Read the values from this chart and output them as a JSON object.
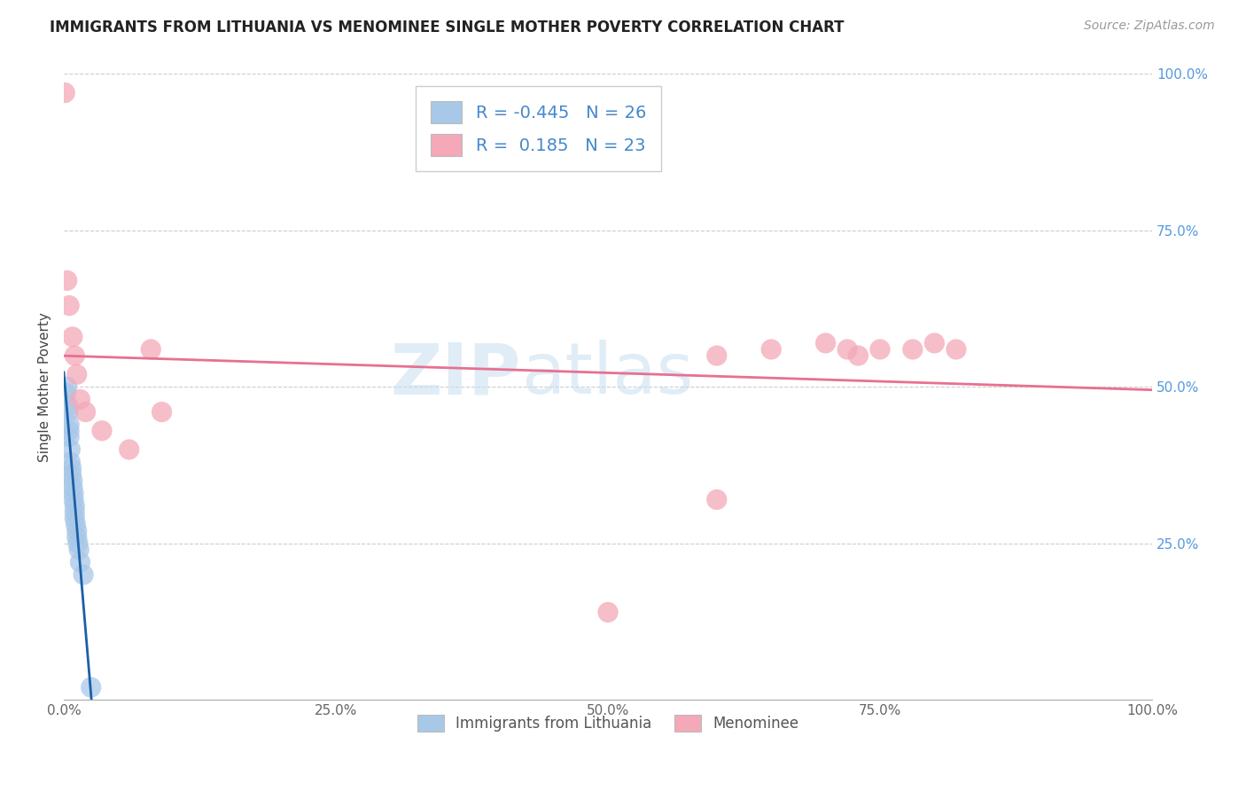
{
  "title": "IMMIGRANTS FROM LITHUANIA VS MENOMINEE SINGLE MOTHER POVERTY CORRELATION CHART",
  "source": "Source: ZipAtlas.com",
  "ylabel": "Single Mother Poverty",
  "xlim": [
    0,
    1.0
  ],
  "ylim": [
    0,
    1.0
  ],
  "xtick_labels": [
    "0.0%",
    "25.0%",
    "50.0%",
    "75.0%",
    "100.0%"
  ],
  "xtick_vals": [
    0,
    0.25,
    0.5,
    0.75,
    1.0
  ],
  "ytick_labels_right": [
    "100.0%",
    "75.0%",
    "50.0%",
    "25.0%"
  ],
  "ytick_vals_right": [
    1.0,
    0.75,
    0.5,
    0.25
  ],
  "blue_r": "-0.445",
  "blue_n": "26",
  "pink_r": "0.185",
  "pink_n": "23",
  "blue_color": "#a8c8e8",
  "pink_color": "#f4a8b8",
  "blue_line_color": "#1a5fa8",
  "pink_line_color": "#e87090",
  "watermark_zip": "ZIP",
  "watermark_atlas": "atlas",
  "legend_label_blue": "Immigrants from Lithuania",
  "legend_label_pink": "Menominee",
  "blue_points_x": [
    0.002,
    0.003,
    0.004,
    0.004,
    0.005,
    0.005,
    0.005,
    0.006,
    0.006,
    0.007,
    0.007,
    0.008,
    0.008,
    0.009,
    0.009,
    0.01,
    0.01,
    0.01,
    0.011,
    0.012,
    0.012,
    0.013,
    0.014,
    0.015,
    0.018,
    0.025
  ],
  "blue_points_y": [
    0.49,
    0.5,
    0.47,
    0.46,
    0.44,
    0.43,
    0.42,
    0.4,
    0.38,
    0.37,
    0.36,
    0.35,
    0.34,
    0.33,
    0.32,
    0.31,
    0.3,
    0.29,
    0.28,
    0.27,
    0.26,
    0.25,
    0.24,
    0.22,
    0.2,
    0.02
  ],
  "pink_points_x": [
    0.001,
    0.003,
    0.005,
    0.008,
    0.01,
    0.012,
    0.015,
    0.02,
    0.035,
    0.06,
    0.08,
    0.09,
    0.5,
    0.6,
    0.65,
    0.7,
    0.72,
    0.73,
    0.75,
    0.78,
    0.8,
    0.82,
    0.6
  ],
  "pink_points_y": [
    0.97,
    0.67,
    0.63,
    0.58,
    0.55,
    0.52,
    0.48,
    0.46,
    0.43,
    0.4,
    0.56,
    0.46,
    0.14,
    0.55,
    0.56,
    0.57,
    0.56,
    0.55,
    0.56,
    0.56,
    0.57,
    0.56,
    0.32
  ]
}
